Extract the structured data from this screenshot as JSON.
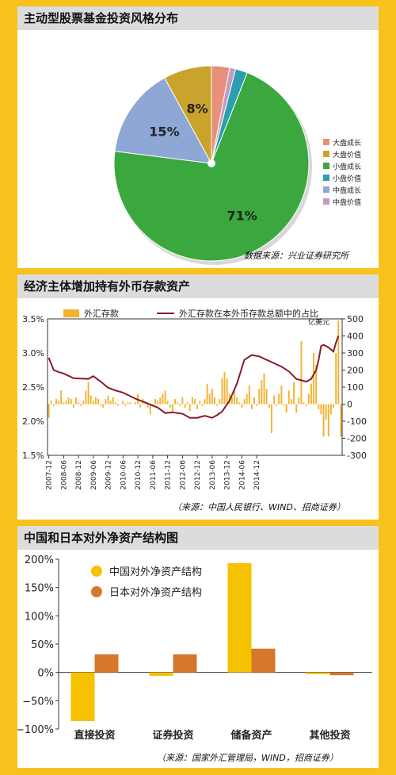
{
  "colors": {
    "page_bg": "#f7c21b",
    "pie": [
      "#e8917a",
      "#c9a32b",
      "#3aa83e",
      "#2a9fb0",
      "#8ea7d4",
      "#c79ac1"
    ],
    "fx_bar": "#f2b331",
    "fx_line": "#8a1a2a",
    "cn_bar": "#f6c100",
    "jp_bar": "#d6782c"
  },
  "panels": {
    "pie_title": "主动型股票基金投资风格分布",
    "pie_source": "数据来源：兴业证券研究所",
    "fx_title": "经济主体增加持有外币存款资产",
    "fx_source": "（来源：中国人民银行、WIND、招商证券）",
    "nfa_title": "中国和日本对外净资产结构图",
    "nfa_source": "（来源：国家外汇管理局，WIND，招商证券）"
  },
  "chart_data": [
    {
      "type": "pie",
      "slices": [
        {
          "name": "大盘成长",
          "value": 3
        },
        {
          "name": "大盘价值",
          "value": 8
        },
        {
          "name": "小盘成长",
          "value": 71
        },
        {
          "name": "小盘价值",
          "value": 2
        },
        {
          "name": "中盘成长",
          "value": 15
        },
        {
          "name": "中盘价值",
          "value": 1
        }
      ],
      "draw_order": [
        0,
        5,
        3,
        2,
        4,
        1
      ],
      "labels": [
        {
          "slice": 2,
          "text": "71%"
        },
        {
          "slice": 4,
          "text": "15%"
        },
        {
          "slice": 1,
          "text": "8%"
        }
      ]
    },
    {
      "type": "bar",
      "legend": [
        "外汇存款",
        "外汇存款在本外币存款总额中的占比"
      ],
      "y2_unit": "亿美元",
      "x_ticks": [
        "2007-12",
        "2008-06",
        "2008-12",
        "2009-06",
        "2009-12",
        "2010-06",
        "2010-12",
        "2011-06",
        "2011-12",
        "2012-06",
        "2012-12",
        "2013-06",
        "2013-12",
        "2014-06",
        "2014-12"
      ],
      "y_left": {
        "ticks": [
          "3.5%",
          "3.0%",
          "2.5%",
          "2.0%",
          "1.5%"
        ],
        "min": 1.5,
        "max": 3.5
      },
      "y_right": {
        "ticks": [
          "500",
          "400",
          "300",
          "200",
          "100",
          "0",
          "-100",
          "-200",
          "-300"
        ],
        "min": -300,
        "max": 500
      },
      "bar_values": [
        -80,
        20,
        -10,
        30,
        20,
        80,
        10,
        20,
        40,
        30,
        -20,
        40,
        10,
        -10,
        20,
        80,
        130,
        50,
        20,
        40,
        30,
        -10,
        -20,
        30,
        50,
        20,
        40,
        10,
        -10,
        0,
        20,
        -10,
        10,
        10,
        0,
        10,
        60,
        -20,
        30,
        10,
        -20,
        -60,
        -10,
        30,
        20,
        40,
        60,
        80,
        20,
        -20,
        -50,
        30,
        10,
        -10,
        40,
        -20,
        10,
        -40,
        40,
        30,
        -30,
        20,
        -10,
        30,
        120,
        60,
        90,
        40,
        -10,
        30,
        150,
        190,
        150,
        60,
        40,
        80,
        40,
        10,
        -20,
        30,
        60,
        110,
        -30,
        40,
        -10,
        90,
        140,
        180,
        90,
        -20,
        -170,
        50,
        -10,
        60,
        110,
        -10,
        -50,
        80,
        30,
        130,
        -50,
        40,
        370,
        10,
        -10,
        60,
        120,
        300,
        230,
        -30,
        -60,
        -190,
        -90,
        -190,
        -60,
        -20,
        300,
        490,
        -190
      ],
      "line_points": [
        [
          0,
          2.93
        ],
        [
          2,
          2.75
        ],
        [
          4,
          2.72
        ],
        [
          6,
          2.7
        ],
        [
          10,
          2.63
        ],
        [
          16,
          2.62
        ],
        [
          18,
          2.66
        ],
        [
          21,
          2.58
        ],
        [
          24,
          2.49
        ],
        [
          27,
          2.45
        ],
        [
          30,
          2.42
        ],
        [
          35,
          2.33
        ],
        [
          40,
          2.26
        ],
        [
          44,
          2.2
        ],
        [
          47,
          2.12
        ],
        [
          50,
          2.13
        ],
        [
          54,
          2.11
        ],
        [
          57,
          2.05
        ],
        [
          60,
          2.05
        ],
        [
          63,
          2.08
        ],
        [
          66,
          2.05
        ],
        [
          68,
          2.09
        ],
        [
          70,
          2.14
        ],
        [
          73,
          2.3
        ],
        [
          76,
          2.55
        ],
        [
          79,
          2.9
        ],
        [
          82,
          2.97
        ],
        [
          85,
          2.95
        ],
        [
          88,
          2.9
        ],
        [
          91,
          2.85
        ],
        [
          94,
          2.8
        ],
        [
          97,
          2.73
        ],
        [
          100,
          2.62
        ],
        [
          102,
          2.6
        ],
        [
          104,
          2.58
        ],
        [
          106,
          2.62
        ],
        [
          108,
          2.75
        ],
        [
          109,
          2.9
        ],
        [
          110,
          3.1
        ],
        [
          111,
          3.12
        ],
        [
          113,
          3.08
        ],
        [
          114,
          3.05
        ],
        [
          115,
          3.02
        ],
        [
          116,
          3.15
        ],
        [
          117,
          3.25
        ]
      ],
      "line_axis": "y_left"
    },
    {
      "type": "bar",
      "categories": [
        "直接投资",
        "证券投资",
        "储备资产",
        "其他投资"
      ],
      "series": [
        {
          "name": "中国对外净资产结构",
          "values": [
            -86,
            -6,
            193,
            -3
          ]
        },
        {
          "name": "日本对外净资产结构",
          "values": [
            32,
            32,
            42,
            -5
          ]
        }
      ],
      "y_ticks": [
        "200%",
        "150%",
        "100%",
        "50%",
        "0%",
        "−50%",
        "−100%"
      ],
      "ylim": [
        -100,
        200
      ]
    }
  ]
}
